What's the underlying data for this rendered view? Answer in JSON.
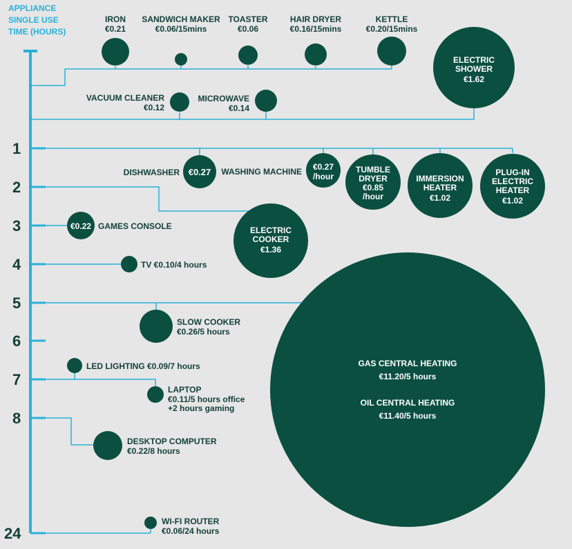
{
  "colors": {
    "background": "#e6e6e6",
    "bubble": "#0b4f41",
    "axis": "#29b1d9",
    "label": "#123f37",
    "bubble_text": "#ffffff"
  },
  "axis": {
    "title_lines": [
      "APPLIANCE",
      "SINGLE USE",
      "TIME (HOURS)"
    ],
    "ticks": [
      {
        "label": "1"
      },
      {
        "label": "2"
      },
      {
        "label": "3"
      },
      {
        "label": "4"
      },
      {
        "label": "5"
      },
      {
        "label": "6"
      },
      {
        "label": "7"
      },
      {
        "label": "8"
      },
      {
        "label": "24"
      }
    ]
  },
  "appliances": [
    {
      "id": "iron",
      "name_lines": [
        "IRON"
      ],
      "cost_lines": [
        "€0.21"
      ]
    },
    {
      "id": "sandwich-maker",
      "name_lines": [
        "SANDWICH MAKER"
      ],
      "cost_lines": [
        "€0.06/15mins"
      ]
    },
    {
      "id": "toaster",
      "name_lines": [
        "TOASTER"
      ],
      "cost_lines": [
        "€0.06"
      ]
    },
    {
      "id": "hair-dryer",
      "name_lines": [
        "HAIR DRYER"
      ],
      "cost_lines": [
        "€0.16/15mins"
      ]
    },
    {
      "id": "kettle",
      "name_lines": [
        "KETTLE"
      ],
      "cost_lines": [
        "€0.20/15mins"
      ]
    },
    {
      "id": "electric-shower",
      "name_lines": [
        "ELECTRIC",
        "SHOWER"
      ],
      "cost_lines": [
        "€1.62"
      ]
    },
    {
      "id": "vacuum-cleaner",
      "name_lines": [
        "VACUUM CLEANER"
      ],
      "cost_lines": [
        "€0.12"
      ]
    },
    {
      "id": "microwave",
      "name_lines": [
        "MICROWAVE"
      ],
      "cost_lines": [
        "€0.14"
      ]
    },
    {
      "id": "dishwasher",
      "name_lines": [
        "DISHWASHER"
      ],
      "cost_lines": [
        "€0.27"
      ]
    },
    {
      "id": "washing-machine",
      "name_lines": [
        "WASHING MACHINE"
      ],
      "cost_lines": [
        "€0.27",
        "/hour"
      ]
    },
    {
      "id": "tumble-dryer",
      "name_lines": [
        "TUMBLE",
        "DRYER"
      ],
      "cost_lines": [
        "€0.85",
        "/hour"
      ]
    },
    {
      "id": "immersion-heater",
      "name_lines": [
        "IMMERSION",
        "HEATER"
      ],
      "cost_lines": [
        "€1.02"
      ]
    },
    {
      "id": "plug-in-electric-heater",
      "name_lines": [
        "PLUG-IN",
        "ELECTRIC",
        "HEATER"
      ],
      "cost_lines": [
        "€1.02"
      ]
    },
    {
      "id": "games-console",
      "name_lines": [
        "GAMES CONSOLE"
      ],
      "cost_lines": [
        "€0.22"
      ]
    },
    {
      "id": "electric-cooker",
      "name_lines": [
        "ELECTRIC",
        "COOKER"
      ],
      "cost_lines": [
        "€1.36"
      ]
    },
    {
      "id": "tv",
      "name_lines": [
        "TV €0.10/4 hours"
      ],
      "cost_lines": []
    },
    {
      "id": "slow-cooker",
      "name_lines": [
        "SLOW COOKER"
      ],
      "cost_lines": [
        "€0.26/5 hours"
      ]
    },
    {
      "id": "led-lighting",
      "name_lines": [
        "LED LIGHTING €0.09/7 hours"
      ],
      "cost_lines": []
    },
    {
      "id": "laptop",
      "name_lines": [
        "LAPTOP"
      ],
      "cost_lines": [
        "€0.11/5 hours office",
        "+2 hours gaming"
      ]
    },
    {
      "id": "desktop-computer",
      "name_lines": [
        "DESKTOP COMPUTER"
      ],
      "cost_lines": [
        "€0.22/8 hours"
      ]
    },
    {
      "id": "wifi-router",
      "name_lines": [
        "WI-FI ROUTER"
      ],
      "cost_lines": [
        "€0.06/24 hours"
      ]
    },
    {
      "id": "central-heating",
      "name_lines": [
        "GAS CENTRAL HEATING"
      ],
      "cost_lines": [
        "€11.20/5 hours",
        "",
        "OIL CENTRAL HEATING",
        "€11.40/5 hours"
      ]
    }
  ]
}
